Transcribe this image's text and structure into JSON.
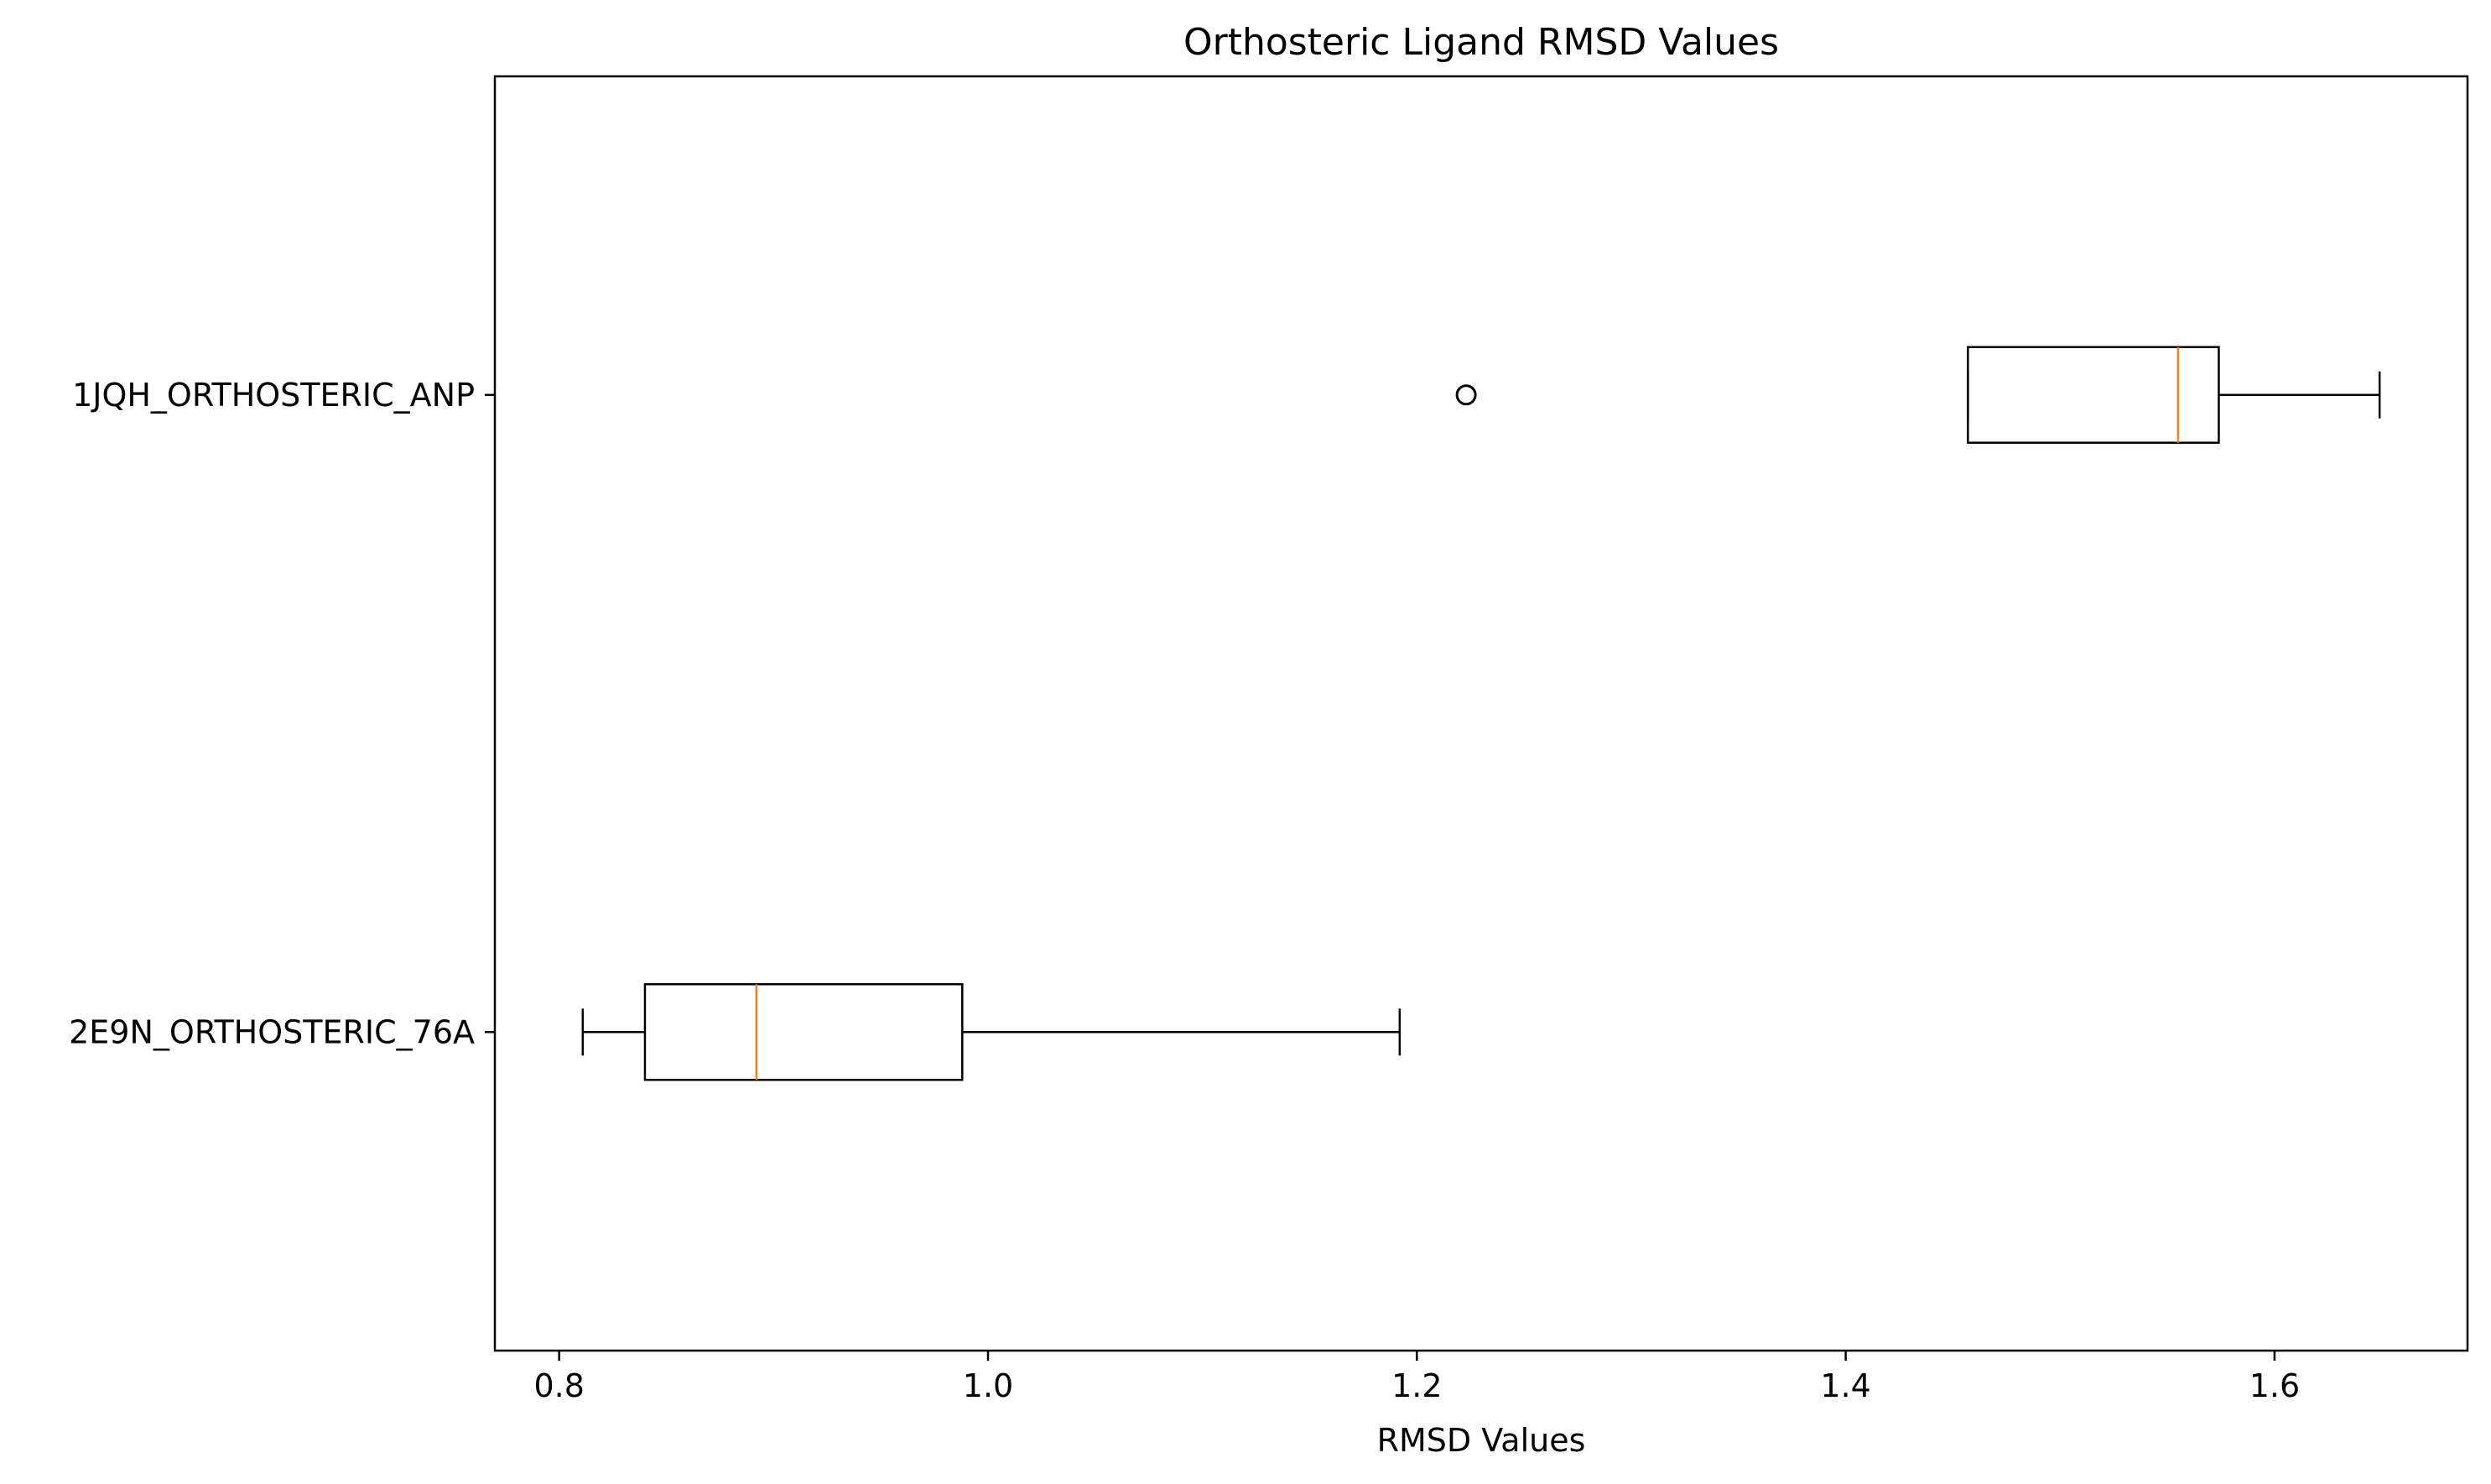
{
  "chart_data": {
    "type": "boxplot",
    "orientation": "horizontal",
    "title": "Orthosteric Ligand RMSD Values",
    "xlabel": "RMSD Values",
    "ylabel": "",
    "xlim": [
      0.77,
      1.69
    ],
    "xticks": [
      0.8,
      1.0,
      1.2,
      1.4,
      1.6
    ],
    "xtick_labels": [
      "0.8",
      "1.0",
      "1.2",
      "1.4",
      "1.6"
    ],
    "grid": false,
    "legend": "none",
    "categories": [
      "1JQH_ORTHOSTERIC_ANP",
      "2E9N_ORTHOSTERIC_76A"
    ],
    "boxes": [
      {
        "label": "1JQH_ORTHOSTERIC_ANP",
        "whisker_low": 1.457,
        "q1": 1.457,
        "median": 1.555,
        "q3": 1.574,
        "whisker_high": 1.649,
        "outliers": [
          1.223
        ]
      },
      {
        "label": "2E9N_ORTHOSTERIC_76A",
        "whisker_low": 0.811,
        "q1": 0.84,
        "median": 0.892,
        "q3": 0.988,
        "whisker_high": 1.192,
        "outliers": []
      }
    ],
    "colors": {
      "box": "#000000",
      "median": "#ff7f0e",
      "outlier": "#000000",
      "background": "#ffffff"
    }
  }
}
